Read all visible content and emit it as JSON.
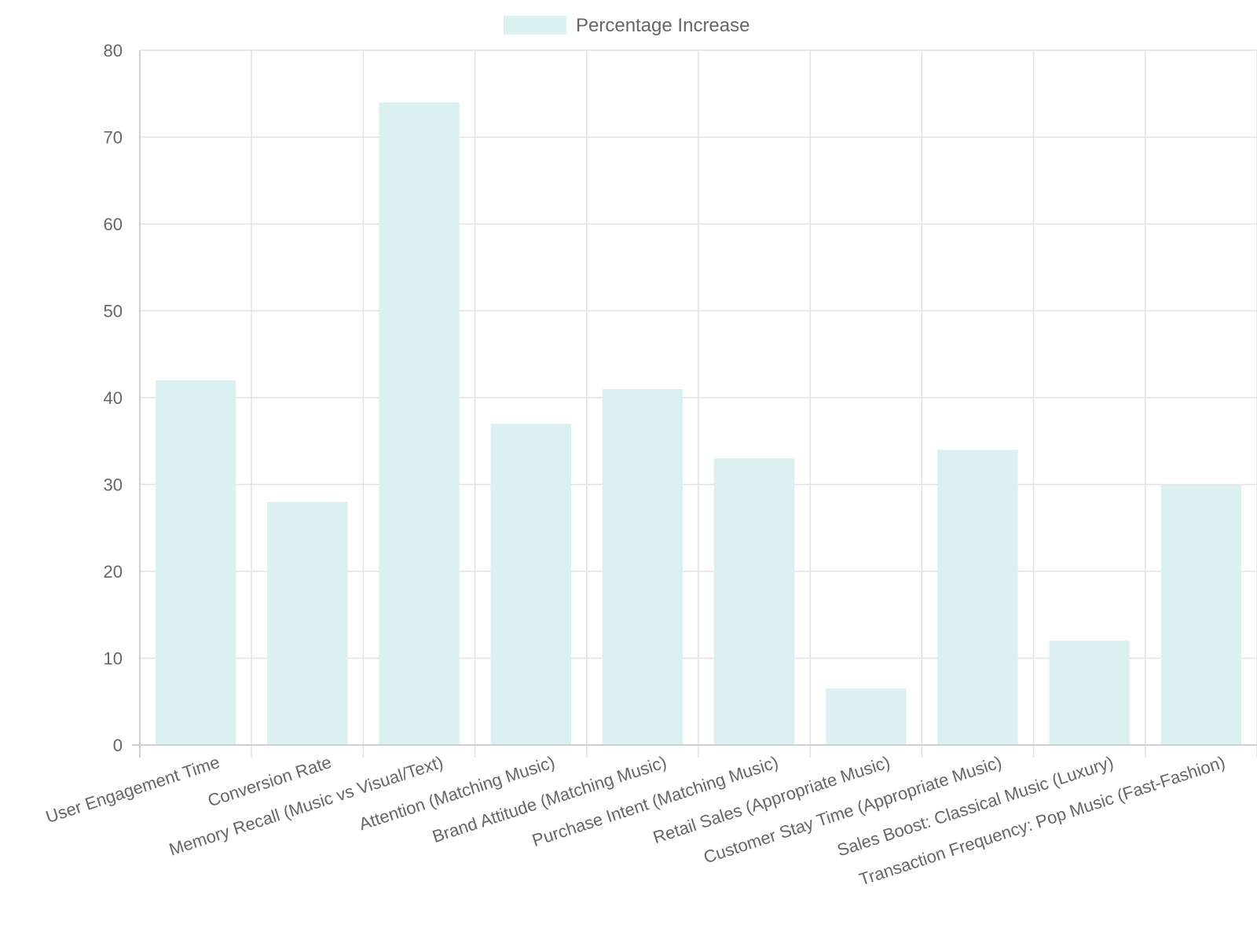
{
  "chart_data": {
    "type": "bar",
    "title": "",
    "xlabel": "",
    "ylabel": "",
    "categories": [
      "User Engagement Time",
      "Conversion Rate",
      "Memory Recall (Music vs Visual/Text)",
      "Attention (Matching Music)",
      "Brand Attitude (Matching Music)",
      "Purchase Intent (Matching Music)",
      "Retail Sales (Appropriate Music)",
      "Customer Stay Time (Appropriate Music)",
      "Sales Boost: Classical Music (Luxury)",
      "Transaction Frequency: Pop Music (Fast-Fashion)"
    ],
    "series": [
      {
        "name": "Percentage Increase",
        "values": [
          42,
          28,
          74,
          37,
          41,
          33,
          6.5,
          34,
          12,
          30
        ],
        "color": "#daf0f1"
      }
    ],
    "ylim": [
      0,
      80
    ],
    "yticks": [
      0,
      10,
      20,
      30,
      40,
      50,
      60,
      70,
      80
    ],
    "grid": true,
    "legend": "top-center"
  }
}
